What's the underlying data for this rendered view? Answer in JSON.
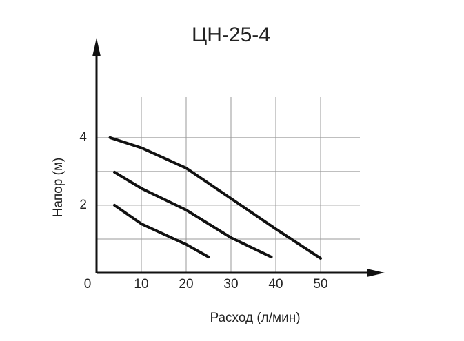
{
  "chart_data": {
    "type": "line",
    "title": "ЦН-25-4",
    "xlabel": "Расход (л/мин)",
    "ylabel": "Напор (м)",
    "xlim": [
      0,
      60
    ],
    "ylim": [
      0,
      5.2
    ],
    "xticks": [
      0,
      10,
      20,
      30,
      40,
      50
    ],
    "yticks": [
      2,
      4
    ],
    "minor_yticks": [
      1,
      3
    ],
    "grid": true,
    "series": [
      {
        "color": "#111111",
        "x": [
          3,
          10,
          20,
          30,
          40,
          50
        ],
        "values": [
          4.0,
          3.7,
          3.1,
          2.2,
          1.3,
          0.43
        ]
      },
      {
        "color": "#111111",
        "x": [
          4,
          10,
          20,
          30,
          39
        ],
        "values": [
          2.98,
          2.5,
          1.86,
          1.04,
          0.47
        ]
      },
      {
        "color": "#111111",
        "x": [
          4,
          10,
          20,
          25
        ],
        "values": [
          2.0,
          1.45,
          0.84,
          0.47
        ]
      }
    ]
  }
}
